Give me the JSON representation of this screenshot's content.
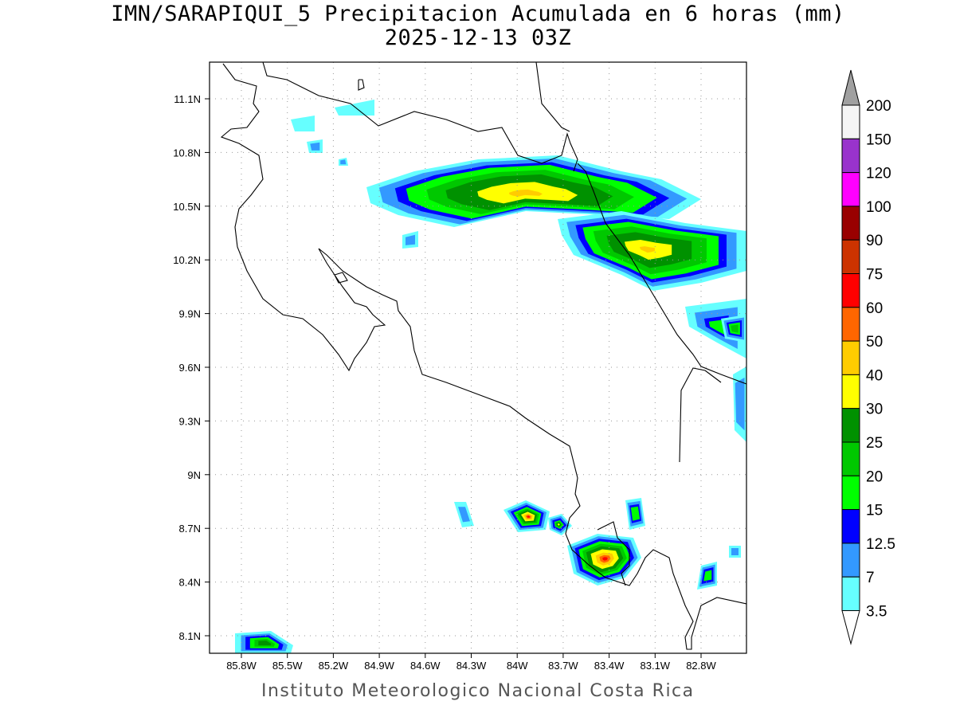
{
  "title": "IMN/SARAPIQUI_5 Precipitacion Acumulada en 6 horas (mm)",
  "subtitle": "2025-12-13 03Z",
  "footer": "Instituto Meteorologico Nacional Costa Rica",
  "map": {
    "lon_ticks": [
      "85.8W",
      "85.5W",
      "85.2W",
      "84.9W",
      "84.6W",
      "84.3W",
      "84W",
      "83.7W",
      "83.4W",
      "83.1W",
      "82.8W"
    ],
    "lat_ticks": [
      "11.1N",
      "10.8N",
      "10.5N",
      "10.2N",
      "9.9N",
      "9.6N",
      "9.3N",
      "9N",
      "8.7N",
      "8.4N",
      "8.1N"
    ],
    "grid": true
  },
  "colorbar": {
    "labels": [
      "3.5",
      "7",
      "12.5",
      "15",
      "20",
      "25",
      "30",
      "40",
      "50",
      "60",
      "75",
      "90",
      "100",
      "120",
      "150",
      "200"
    ],
    "colors": [
      "#66ffff",
      "#3399ff",
      "#0000ff",
      "#00ff00",
      "#00c800",
      "#009100",
      "#ffff00",
      "#ffcc00",
      "#ff6600",
      "#ff0000",
      "#cc3300",
      "#990000",
      "#ff00ff",
      "#9933cc",
      "#f5f5f5"
    ],
    "over_color": "#a0a0a0",
    "under_color": "#ffffff"
  }
}
